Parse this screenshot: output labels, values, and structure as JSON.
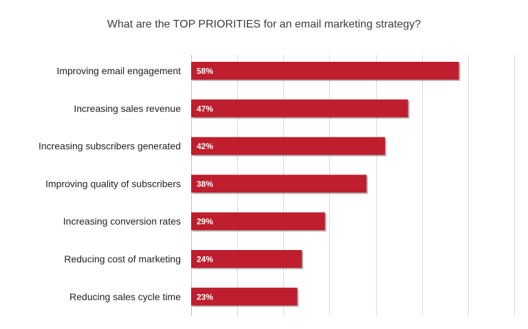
{
  "chart_data": {
    "type": "bar",
    "orientation": "horizontal",
    "title": "What are the TOP PRIORITIES for an email marketing strategy?",
    "categories": [
      "Improving email engagement",
      "Increasing sales revenue",
      "Increasing subscribers generated",
      "Improving quality of subscribers",
      "Increasing conversion rates",
      "Reducing cost of marketing",
      "Reducing sales cycle time"
    ],
    "values": [
      58,
      47,
      42,
      38,
      29,
      24,
      23
    ],
    "value_labels": [
      "58%",
      "47%",
      "42%",
      "38%",
      "29%",
      "24%",
      "23%"
    ],
    "xlim": [
      0,
      70
    ],
    "grid": true,
    "bar_color": "#be1e2d"
  }
}
